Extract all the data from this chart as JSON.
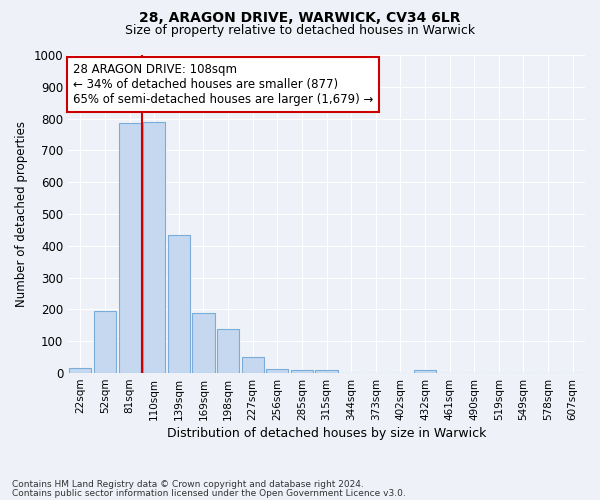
{
  "title1": "28, ARAGON DRIVE, WARWICK, CV34 6LR",
  "title2": "Size of property relative to detached houses in Warwick",
  "xlabel": "Distribution of detached houses by size in Warwick",
  "ylabel": "Number of detached properties",
  "bar_labels": [
    "22sqm",
    "52sqm",
    "81sqm",
    "110sqm",
    "139sqm",
    "169sqm",
    "198sqm",
    "227sqm",
    "256sqm",
    "285sqm",
    "315sqm",
    "344sqm",
    "373sqm",
    "402sqm",
    "432sqm",
    "461sqm",
    "490sqm",
    "519sqm",
    "549sqm",
    "578sqm",
    "607sqm"
  ],
  "bar_values": [
    15,
    195,
    785,
    790,
    435,
    190,
    140,
    50,
    12,
    10,
    10,
    0,
    0,
    0,
    10,
    0,
    0,
    0,
    0,
    0,
    0
  ],
  "bar_color": "#c5d8f0",
  "bar_edge_color": "#7aacda",
  "vline_x_index": 3,
  "annotation_text_line1": "28 ARAGON DRIVE: 108sqm",
  "annotation_text_line2": "← 34% of detached houses are smaller (877)",
  "annotation_text_line3": "65% of semi-detached houses are larger (1,679) →",
  "vline_color": "#cc0000",
  "annotation_box_facecolor": "#ffffff",
  "annotation_box_edgecolor": "#cc0000",
  "bg_color": "#eef2f8",
  "grid_color": "#ffffff",
  "yticks": [
    0,
    100,
    200,
    300,
    400,
    500,
    600,
    700,
    800,
    900,
    1000
  ],
  "ylim": [
    0,
    1000
  ],
  "footnote1": "Contains HM Land Registry data © Crown copyright and database right 2024.",
  "footnote2": "Contains public sector information licensed under the Open Government Licence v3.0."
}
